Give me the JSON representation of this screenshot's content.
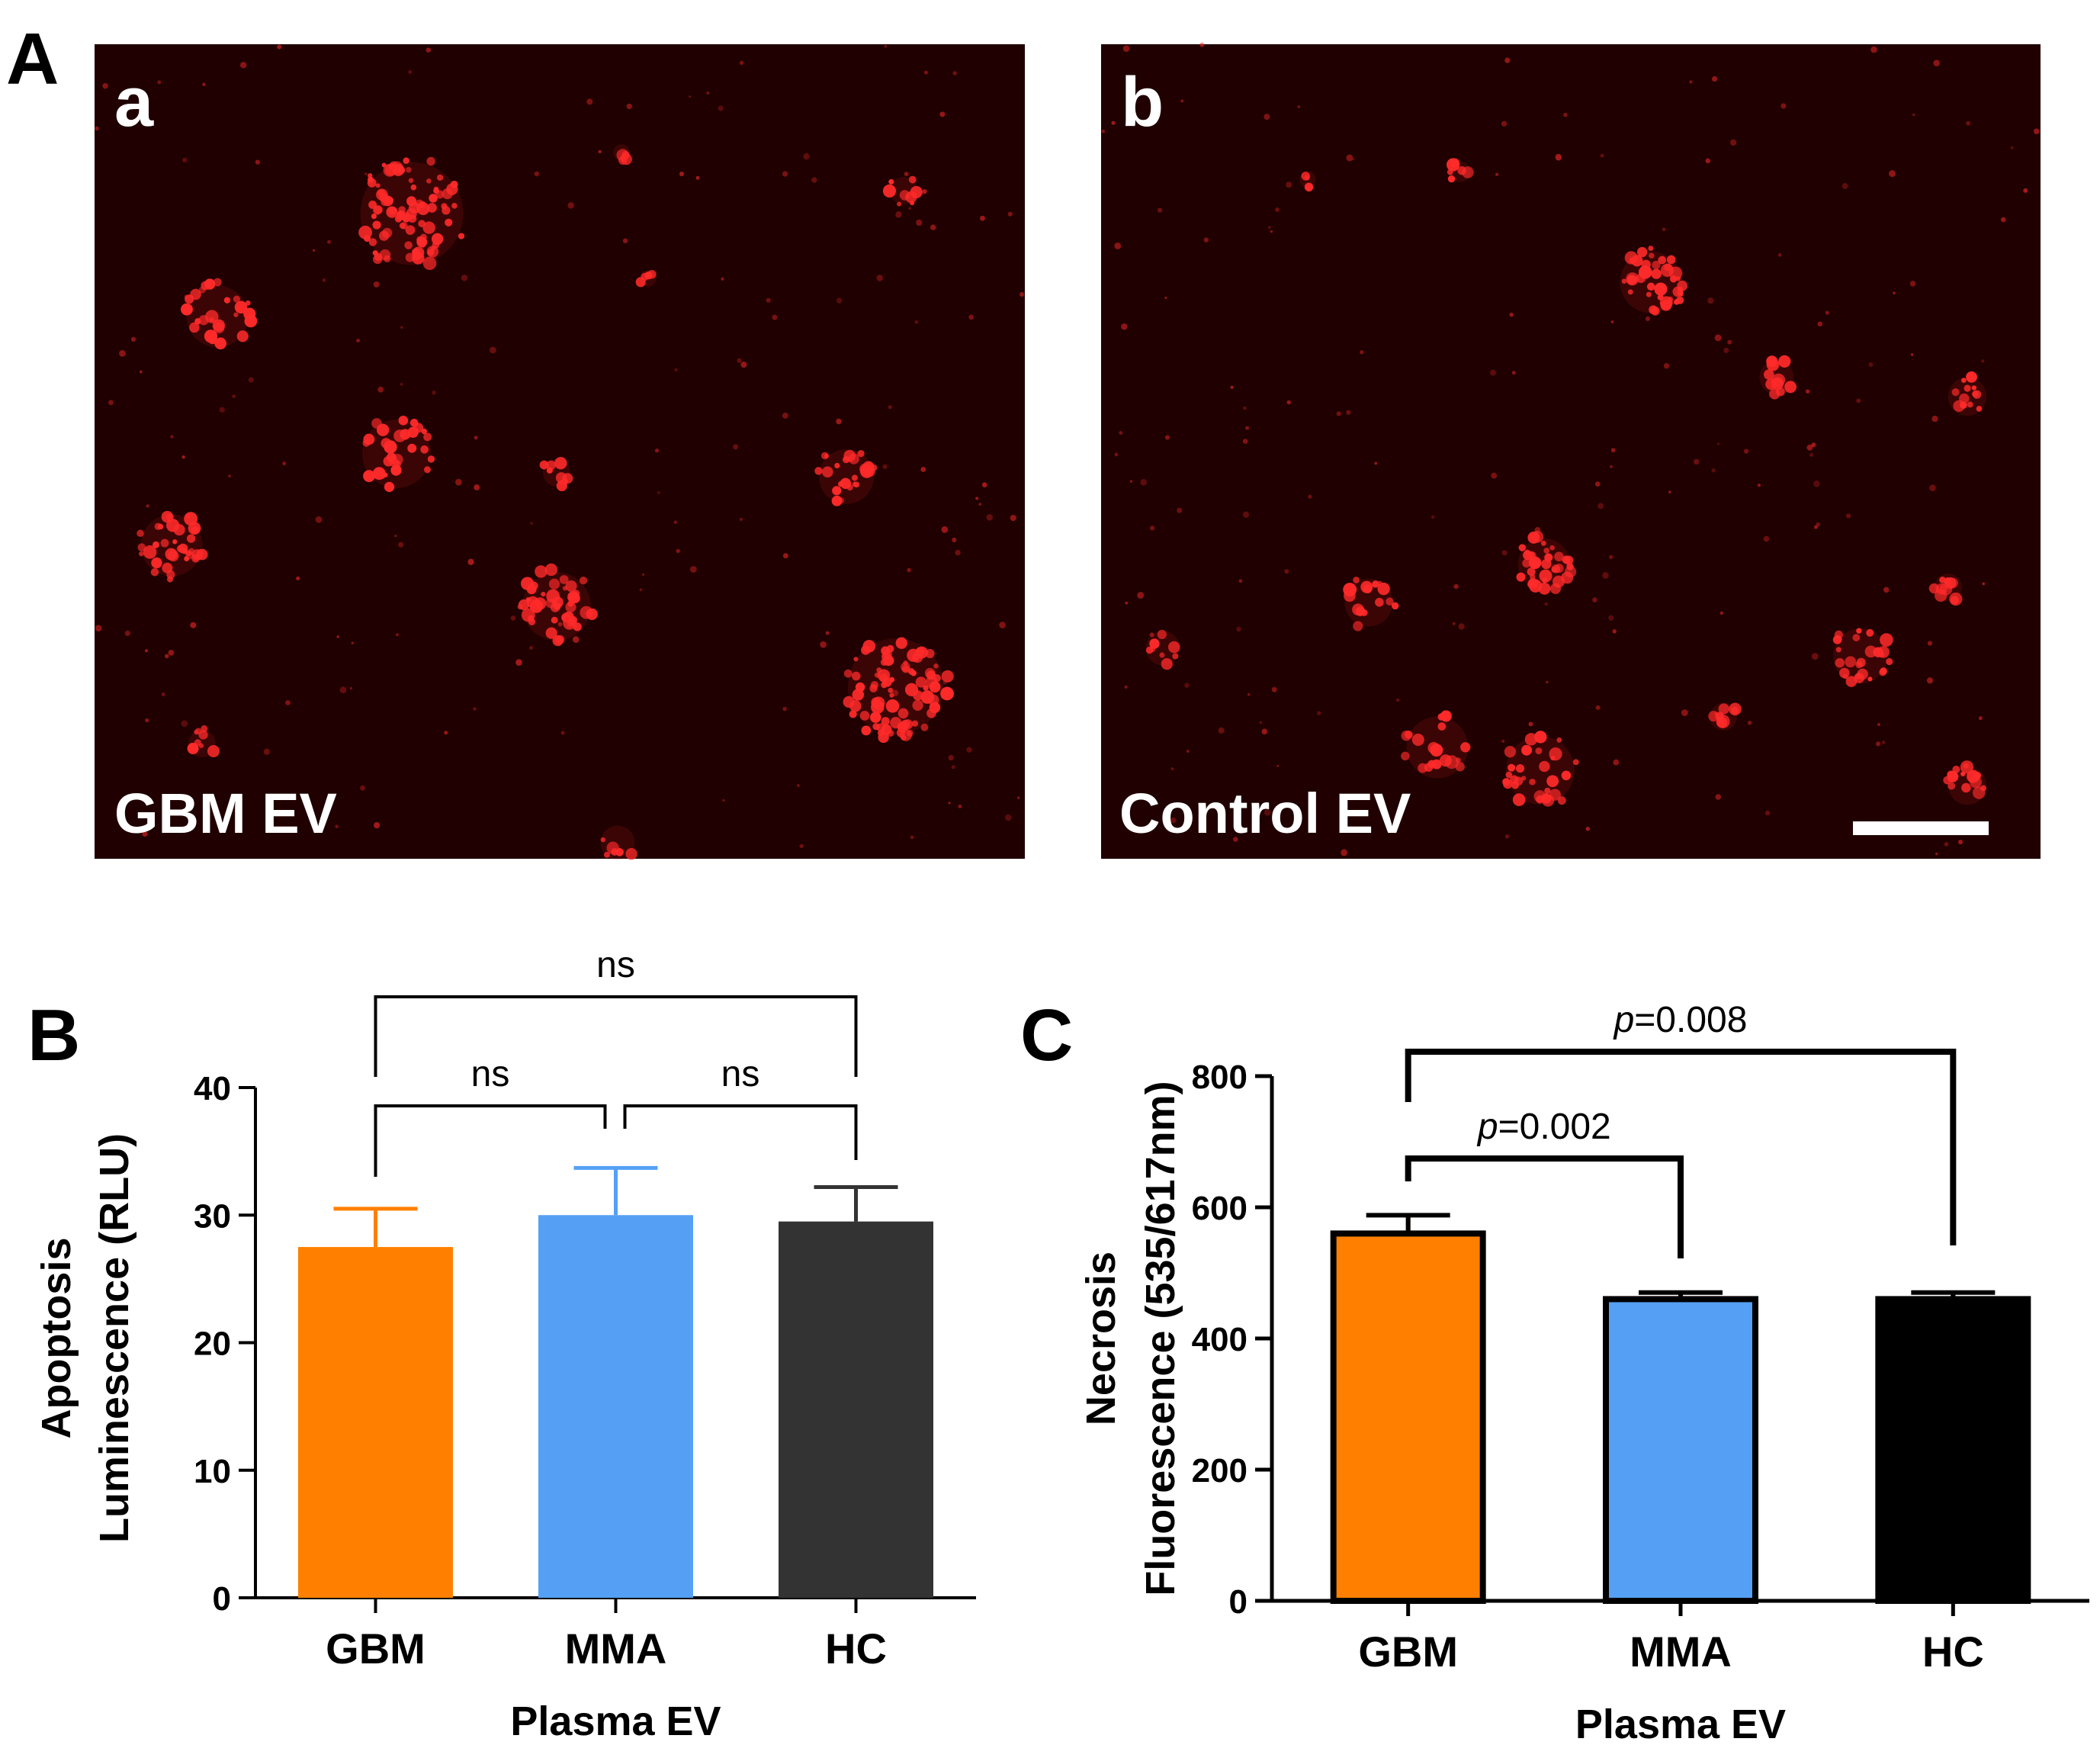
{
  "panel_A": {
    "letter": "A",
    "images": [
      {
        "sub_letter": "a",
        "caption": "GBM EV",
        "background": "#200000",
        "dot_color": "#ff2a2a"
      },
      {
        "sub_letter": "b",
        "caption": "Control EV",
        "background": "#200000",
        "dot_color": "#ff2a2a"
      }
    ]
  },
  "chart_data": [
    {
      "type": "bar",
      "panel": "B",
      "categories": [
        "GBM",
        "MMA",
        "HC"
      ],
      "values": [
        27.5,
        30.0,
        29.5
      ],
      "errors": [
        3.0,
        3.7,
        2.7
      ],
      "colors": [
        "#ff8000",
        "#55a0f5",
        "#333333"
      ],
      "bar_outline": false,
      "xlabel": "Plasma EV",
      "ylabel_lines": [
        "Apoptosis",
        "Luminescence (RLU)"
      ],
      "ylim": [
        0,
        40
      ],
      "yticks": [
        0,
        10,
        20,
        30,
        40
      ],
      "comparisons": [
        {
          "from": 0,
          "to": 1,
          "label_plain": "ns",
          "label_italic": ""
        },
        {
          "from": 1,
          "to": 2,
          "label_plain": "ns",
          "label_italic": ""
        },
        {
          "from": 0,
          "to": 2,
          "label_plain": "ns",
          "label_italic": ""
        }
      ]
    },
    {
      "type": "bar",
      "panel": "C",
      "categories": [
        "GBM",
        "MMA",
        "HC"
      ],
      "values": [
        560,
        460,
        460
      ],
      "errors": [
        28,
        10,
        10
      ],
      "colors": [
        "#ff8000",
        "#55a0f5",
        "#000000"
      ],
      "bar_outline": true,
      "xlabel": "Plasma EV",
      "ylabel_lines": [
        "Necrosis",
        "Fluorescence (535/617nm)"
      ],
      "ylim": [
        0,
        800
      ],
      "yticks": [
        0,
        200,
        400,
        600,
        800
      ],
      "comparisons": [
        {
          "from": 0,
          "to": 1,
          "label_italic": "p",
          "label_plain": "=0.002"
        },
        {
          "from": 0,
          "to": 2,
          "label_italic": "p",
          "label_plain": "=0.008"
        }
      ]
    }
  ]
}
